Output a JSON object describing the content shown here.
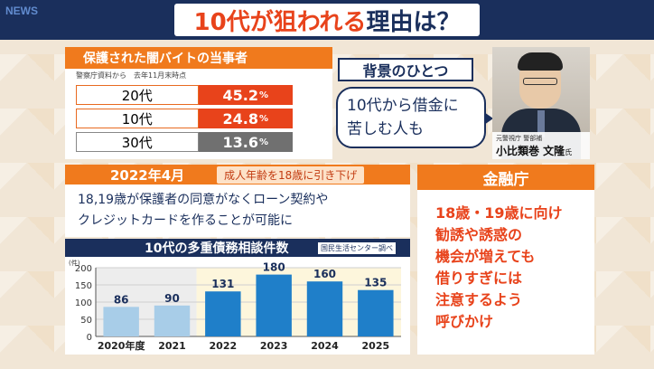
{
  "header": {
    "logo": "NEWS",
    "title_highlight": "10代が狙われる",
    "title_rest": "理由は？"
  },
  "stats_panel": {
    "title": "保護された闇バイトの当事者",
    "note": "警察庁資料から　去年11月末時点",
    "rows": [
      {
        "label": "20代",
        "value": "45.2",
        "unit": "%",
        "color": "#e8431b"
      },
      {
        "label": "10代",
        "value": "24.8",
        "unit": "%",
        "color": "#e8431b"
      },
      {
        "label": "30代",
        "value": "13.6",
        "unit": "%",
        "color": "#707070"
      }
    ]
  },
  "background": {
    "title": "背景のひとつ",
    "quote_line1": "10代から借金に",
    "quote_line2": "苦しむ人も",
    "person_role": "元警視庁 警部補",
    "person_name": "小比類巻 文隆",
    "person_suffix": "氏"
  },
  "law": {
    "date": "2022年4月",
    "tag": "成人年齢を18歳に引き下げ",
    "desc_line1": "18,19歳が保護者の同意がなくローン契約や",
    "desc_line2": "クレジットカードを作ることが可能に"
  },
  "chart_panel": {
    "title": "10代の多重債務相談件数",
    "source": "国民生活センター調べ"
  },
  "chart_data": {
    "type": "bar",
    "categories": [
      "2020",
      "2021",
      "2022",
      "2023",
      "2024",
      "2025"
    ],
    "category_labels": [
      "2020年度",
      "2021",
      "2022",
      "2023",
      "2024",
      "2025"
    ],
    "values": [
      86,
      90,
      131,
      180,
      160,
      135
    ],
    "colors": [
      "#a8cde8",
      "#a8cde8",
      "#1f7fc9",
      "#1f7fc9",
      "#1f7fc9",
      "#1f7fc9"
    ],
    "yunit": "(件)",
    "yticks": [
      0,
      50,
      100,
      150,
      200
    ],
    "ylim": [
      0,
      200
    ]
  },
  "fsa": {
    "title": "金融庁",
    "lines": [
      "18歳・19歳に向け",
      "勧誘や誘惑の",
      "機会が増えても",
      "借りすぎには",
      "注意するよう",
      "呼びかけ"
    ]
  }
}
